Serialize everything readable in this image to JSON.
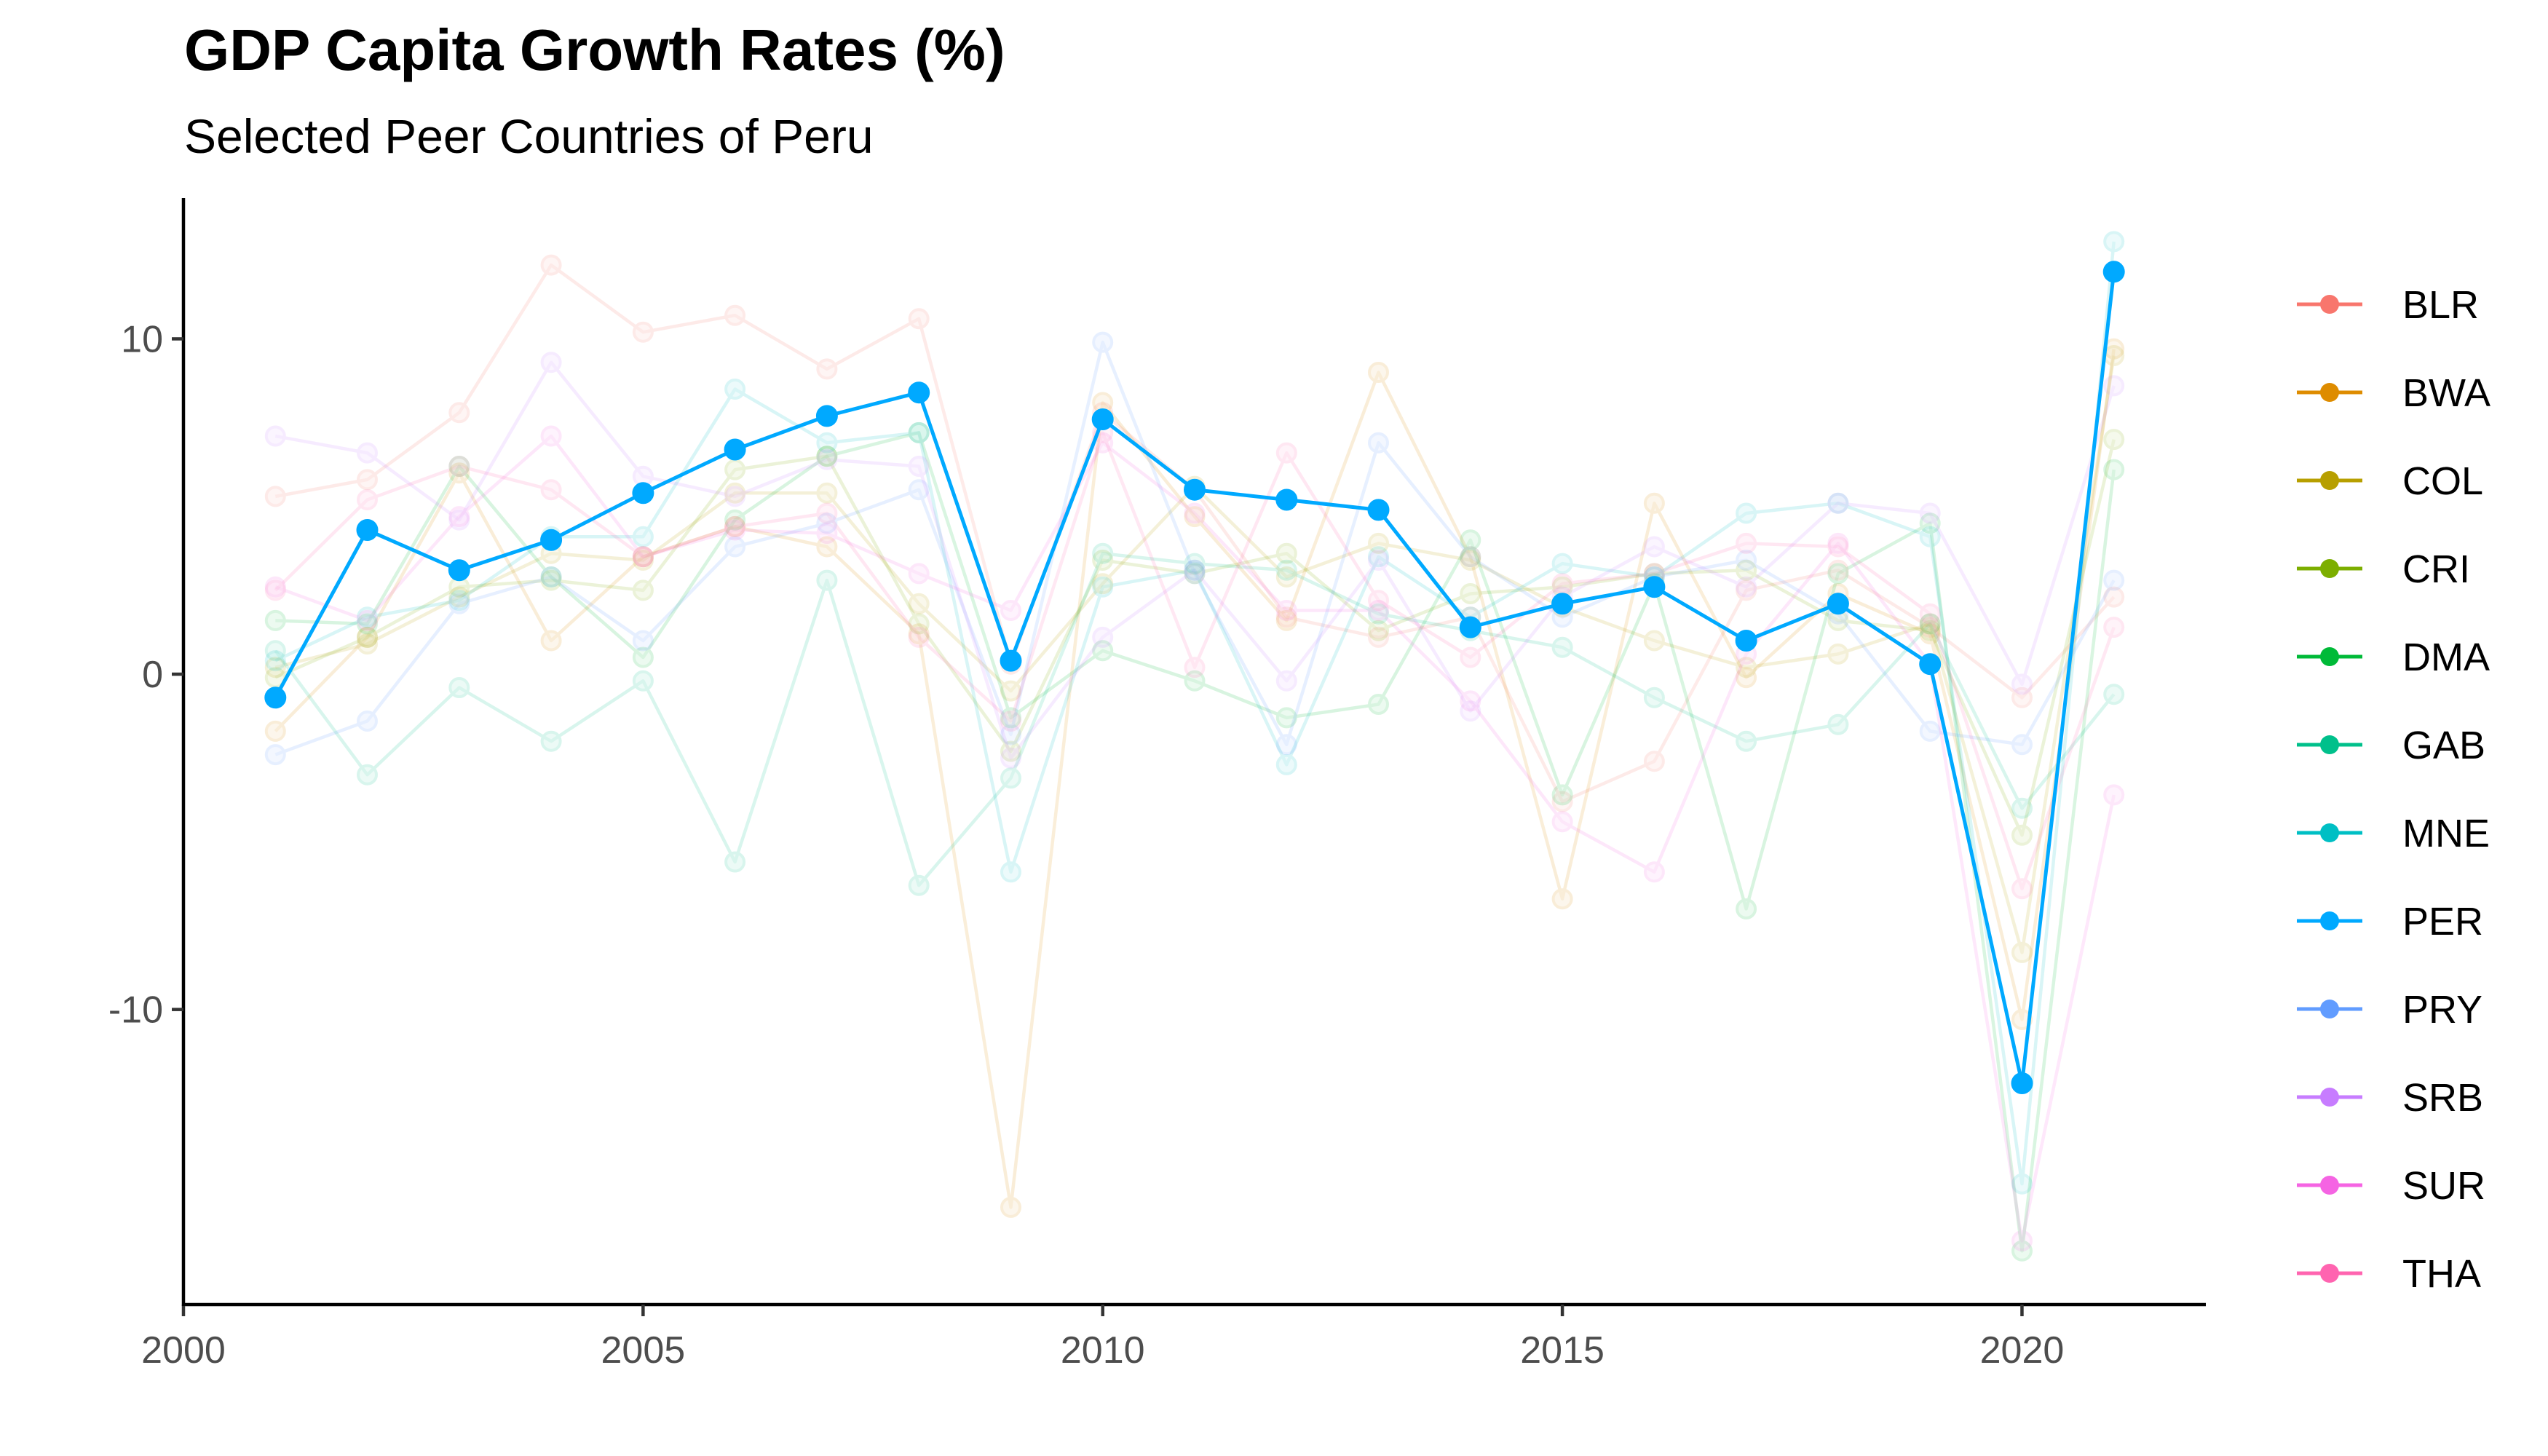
{
  "chart_data": {
    "type": "line",
    "title": "GDP Capita Growth Rates (%)",
    "subtitle": "Selected Peer Countries of Peru",
    "xlabel": "",
    "ylabel": "",
    "xlim": [
      2000,
      2022
    ],
    "ylim": [
      -18.8,
      14.2
    ],
    "x_ticks": [
      2000,
      2005,
      2010,
      2015,
      2020
    ],
    "y_ticks": [
      -10,
      0,
      10
    ],
    "grid": false,
    "legend_position": "right",
    "highlighted_series": "PER",
    "x": [
      2001,
      2002,
      2003,
      2004,
      2005,
      2006,
      2007,
      2008,
      2009,
      2010,
      2011,
      2012,
      2013,
      2014,
      2015,
      2016,
      2017,
      2018,
      2019,
      2020,
      2021
    ],
    "series": [
      {
        "name": "BLR",
        "color": "#F8766D",
        "values": [
          5.3,
          5.8,
          7.8,
          12.2,
          10.2,
          10.7,
          9.1,
          10.6,
          0.3,
          7.8,
          5.5,
          1.7,
          1.1,
          1.7,
          -3.8,
          -2.6,
          2.5,
          3.1,
          1.4,
          -0.7,
          2.3
        ]
      },
      {
        "name": "BWA",
        "color": "#DE8C00",
        "values": [
          -1.7,
          1.1,
          6.0,
          1.0,
          3.5,
          4.4,
          3.8,
          1.2,
          -15.9,
          8.1,
          4.7,
          1.6,
          9.0,
          3.5,
          -6.7,
          5.1,
          -0.1,
          2.4,
          1.2,
          -10.3,
          9.7
        ]
      },
      {
        "name": "COL",
        "color": "#B79F00",
        "values": [
          0.2,
          0.9,
          2.3,
          3.6,
          3.4,
          5.4,
          5.4,
          2.1,
          -0.5,
          2.7,
          5.6,
          2.9,
          3.9,
          3.4,
          2.0,
          1.0,
          0.2,
          0.6,
          1.5,
          -8.3,
          9.5
        ]
      },
      {
        "name": "CRI",
        "color": "#7CAE00",
        "values": [
          -0.1,
          1.1,
          2.6,
          2.8,
          2.5,
          6.1,
          6.5,
          1.5,
          -2.3,
          3.4,
          3.0,
          3.6,
          1.3,
          2.4,
          2.6,
          3.0,
          3.1,
          1.6,
          1.3,
          -4.8,
          7.0
        ]
      },
      {
        "name": "DMA",
        "color": "#00BA38",
        "values": [
          1.6,
          1.5,
          6.2,
          2.9,
          0.5,
          4.6,
          6.5,
          7.2,
          -1.3,
          0.7,
          -0.2,
          -1.3,
          -0.9,
          4.0,
          -3.6,
          2.7,
          -7.0,
          3.0,
          4.5,
          -17.2,
          6.1
        ]
      },
      {
        "name": "GAB",
        "color": "#00C08B",
        "values": [
          0.7,
          -3.0,
          -0.4,
          -2.0,
          -0.2,
          -5.6,
          2.8,
          -6.3,
          -3.1,
          3.6,
          3.3,
          3.1,
          1.8,
          1.3,
          0.8,
          -0.7,
          -2.0,
          -1.5,
          1.5,
          -4.0,
          -0.6
        ]
      },
      {
        "name": "MNE",
        "color": "#00BFC4",
        "values": [
          0.4,
          1.7,
          2.2,
          4.1,
          4.1,
          8.5,
          6.9,
          7.2,
          -5.9,
          2.6,
          3.1,
          -2.7,
          3.5,
          1.7,
          3.3,
          2.9,
          4.8,
          5.1,
          4.1,
          -15.2,
          12.9
        ]
      },
      {
        "name": "PER",
        "color": "#00A9FF",
        "values": [
          -0.7,
          4.3,
          3.1,
          4.0,
          5.4,
          6.7,
          7.7,
          8.4,
          0.4,
          7.6,
          5.5,
          5.2,
          4.9,
          1.4,
          2.1,
          2.6,
          1.0,
          2.1,
          0.3,
          -12.2,
          12.0
        ]
      },
      {
        "name": "PRY",
        "color": "#619CFF",
        "values": [
          -2.4,
          -1.4,
          2.1,
          2.9,
          1.0,
          3.8,
          4.5,
          5.5,
          -1.8,
          9.9,
          3.0,
          -2.1,
          6.9,
          3.5,
          1.7,
          2.9,
          3.4,
          1.8,
          -1.7,
          -2.1,
          2.8
        ]
      },
      {
        "name": "SRB",
        "color": "#C77CFF",
        "values": [
          7.1,
          6.6,
          4.6,
          9.3,
          5.9,
          5.3,
          6.4,
          6.2,
          -2.5,
          1.1,
          3.1,
          -0.2,
          3.4,
          -1.1,
          2.3,
          3.8,
          2.6,
          5.1,
          4.8,
          -0.3,
          8.6
        ]
      },
      {
        "name": "SUR",
        "color": "#F564E3",
        "values": [
          2.6,
          1.6,
          4.7,
          7.1,
          3.5,
          4.3,
          4.2,
          3.0,
          1.9,
          6.9,
          4.8,
          1.9,
          1.9,
          -0.8,
          -4.4,
          -5.9,
          0.6,
          3.9,
          0.3,
          -16.9,
          -3.6
        ]
      },
      {
        "name": "THA",
        "color": "#FF64B0",
        "values": [
          2.5,
          5.2,
          6.2,
          5.5,
          3.5,
          4.4,
          4.8,
          1.1,
          -1.4,
          7.2,
          0.2,
          6.6,
          2.2,
          0.5,
          2.7,
          3.0,
          3.9,
          3.8,
          1.8,
          -6.4,
          1.4
        ]
      }
    ]
  }
}
